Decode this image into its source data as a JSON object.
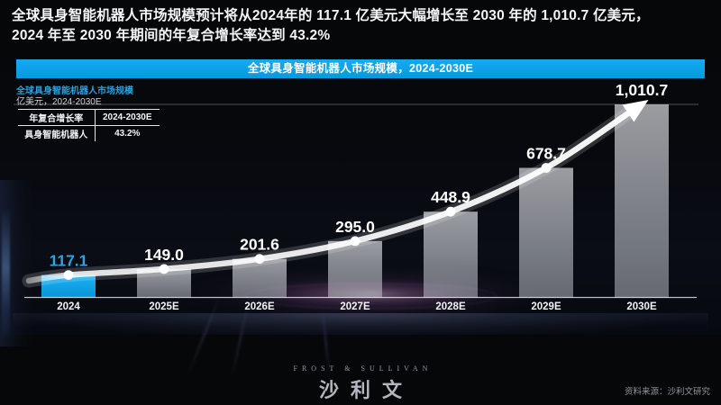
{
  "headline": {
    "line1": "全球具身智能机器人市场规模预计将从2024年的 117.1 亿美元大幅增长至 2030 年的 1,010.7 亿美元，",
    "line2": "2024 年至 2030 年期间的年复合增长率达到 43.2%"
  },
  "chart": {
    "title": "全球具身智能机器人市场规模，2024-2030E",
    "subtitle": "全球具身智能机器人市场规模",
    "unit_label": "亿美元，2024-2030E"
  },
  "cagr_table": {
    "header": [
      "年复合增长率",
      "2024-2030E"
    ],
    "rows": [
      [
        "具身智能机器人",
        "43.2%"
      ]
    ]
  },
  "chart_data": {
    "type": "bar",
    "categories": [
      "2024",
      "2025E",
      "2026E",
      "2027E",
      "2028E",
      "2029E",
      "2030E"
    ],
    "values": [
      117.1,
      149.0,
      201.6,
      295.0,
      448.9,
      678.7,
      1010.7
    ],
    "value_labels": [
      "117.1",
      "149.0",
      "201.6",
      "295.0",
      "448.9",
      "678.7",
      "1,010.7"
    ],
    "title": "全球具身智能机器人市场规模，2024-2030E",
    "xlabel": "",
    "ylabel": "亿美元",
    "ylim": [
      0,
      1010.7
    ],
    "grid": "top-line-only",
    "highlight_index": 0,
    "trend": "smooth-line-with-arrow",
    "colors": {
      "highlight_bar": "#0ba2e8",
      "bar": "rgba(236,240,246,0.55)",
      "trend_line": "#ffffff",
      "value_label": "#ffffff",
      "highlight_value_label": "#2da4e4",
      "axis_label": "#f1f3f6",
      "title_bar": "#0aa2e8"
    }
  },
  "footer": {
    "logo_en": "FROST & SULLIVAN",
    "logo_cn": "沙利文",
    "source": "资料来源：沙利文研究"
  }
}
